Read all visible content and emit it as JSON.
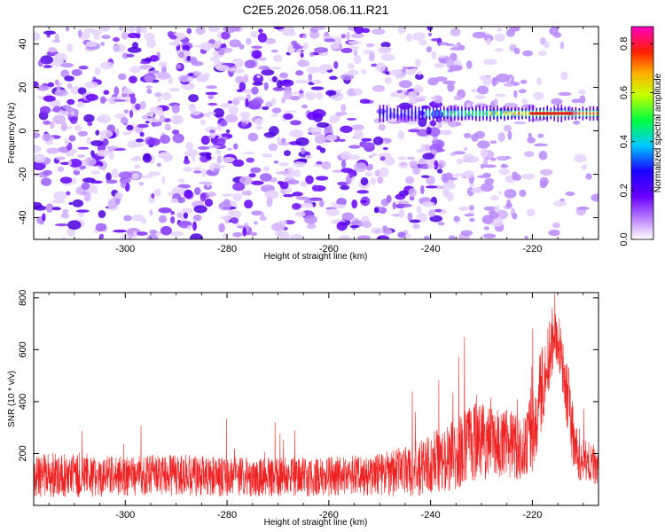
{
  "chart_data": [
    {
      "type": "heatmap",
      "title": "C2E5.2026.058.06.11.R21",
      "xlabel": "Height of straight line (km)",
      "ylabel": "Frequency (Hz)",
      "xlim": [
        -318,
        -207
      ],
      "ylim": [
        -50,
        48
      ],
      "x_ticks": [
        -300,
        -280,
        -260,
        -240,
        -220
      ],
      "y_ticks": [
        -40,
        -20,
        0,
        20,
        40
      ],
      "signal": {
        "description_value": "Narrow band near 8 Hz from about -250 km to -207 km, peak near -215 km",
        "frequency_hz": 8,
        "x_start": -250,
        "x_peak": -215,
        "peak_amplitude": 0.85
      },
      "colorbar": {
        "label": "Normalized spectral amplitude",
        "range": [
          0.0,
          0.87
        ],
        "ticks": [
          0.0,
          0.2,
          0.4,
          0.6,
          0.8
        ]
      }
    },
    {
      "type": "line",
      "xlabel": "Height of straight line (km)",
      "ylabel": "SNR (10 * v/v)",
      "xlim": [
        -318,
        -207
      ],
      "ylim": [
        0,
        820
      ],
      "x_ticks": [
        -300,
        -280,
        -260,
        -240,
        -220
      ],
      "y_ticks": [
        200,
        400,
        600,
        800
      ],
      "series_color": "#ee2222",
      "envelope": {
        "x": [
          -318,
          -310,
          -300,
          -290,
          -280,
          -270,
          -260,
          -250,
          -245,
          -240,
          -235,
          -231,
          -228,
          -225,
          -222,
          -220,
          -218,
          -216,
          -215,
          -214,
          -213,
          -212,
          -211,
          -210,
          -208,
          -207
        ],
        "mean": [
          115,
          118,
          112,
          118,
          108,
          110,
          112,
          118,
          130,
          160,
          195,
          250,
          240,
          240,
          215,
          290,
          470,
          640,
          650,
          520,
          420,
          260,
          175,
          170,
          160,
          140
        ],
        "amp": [
          150,
          165,
          140,
          150,
          135,
          140,
          140,
          150,
          180,
          220,
          250,
          280,
          250,
          240,
          230,
          300,
          330,
          230,
          210,
          240,
          260,
          230,
          170,
          150,
          140,
          130
        ]
      }
    }
  ]
}
